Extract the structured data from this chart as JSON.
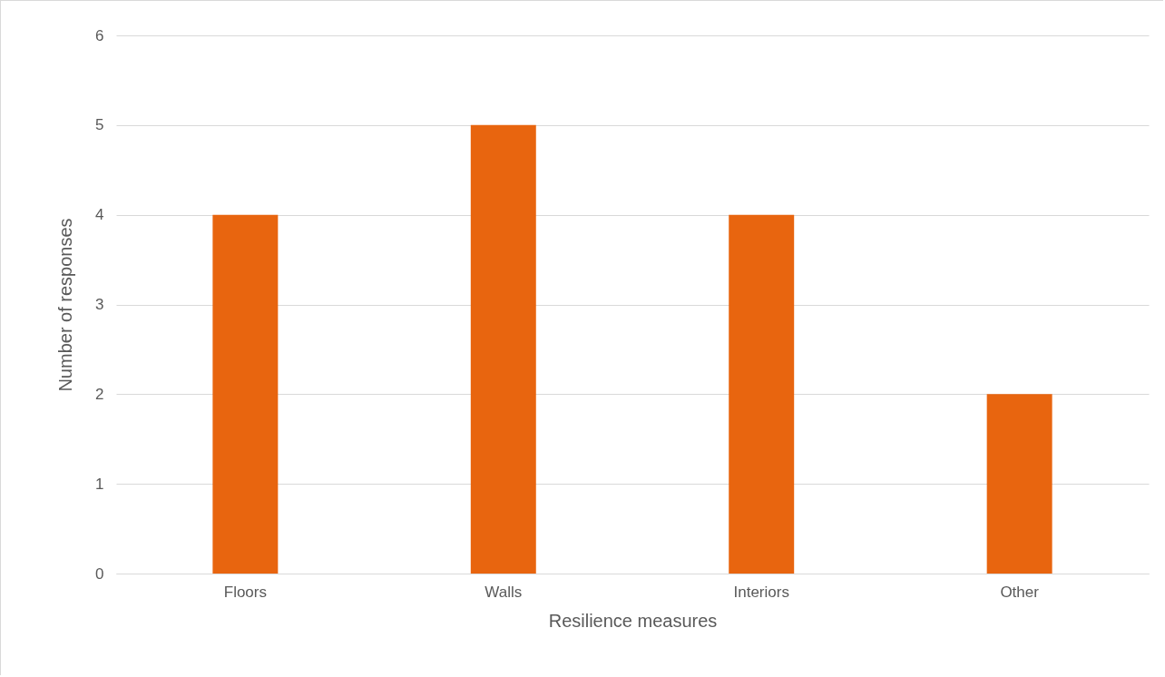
{
  "chart_data": {
    "type": "bar",
    "xlabel": "Resilience measures",
    "ylabel": "Number of responses",
    "categories": [
      "Floors",
      "Walls",
      "Interiors",
      "Other"
    ],
    "values": [
      4,
      5,
      4,
      2
    ],
    "color": "#e8650f",
    "ylim": [
      0,
      6
    ],
    "yticks": [
      0,
      1,
      2,
      3,
      4,
      5,
      6
    ],
    "grid": "y"
  }
}
